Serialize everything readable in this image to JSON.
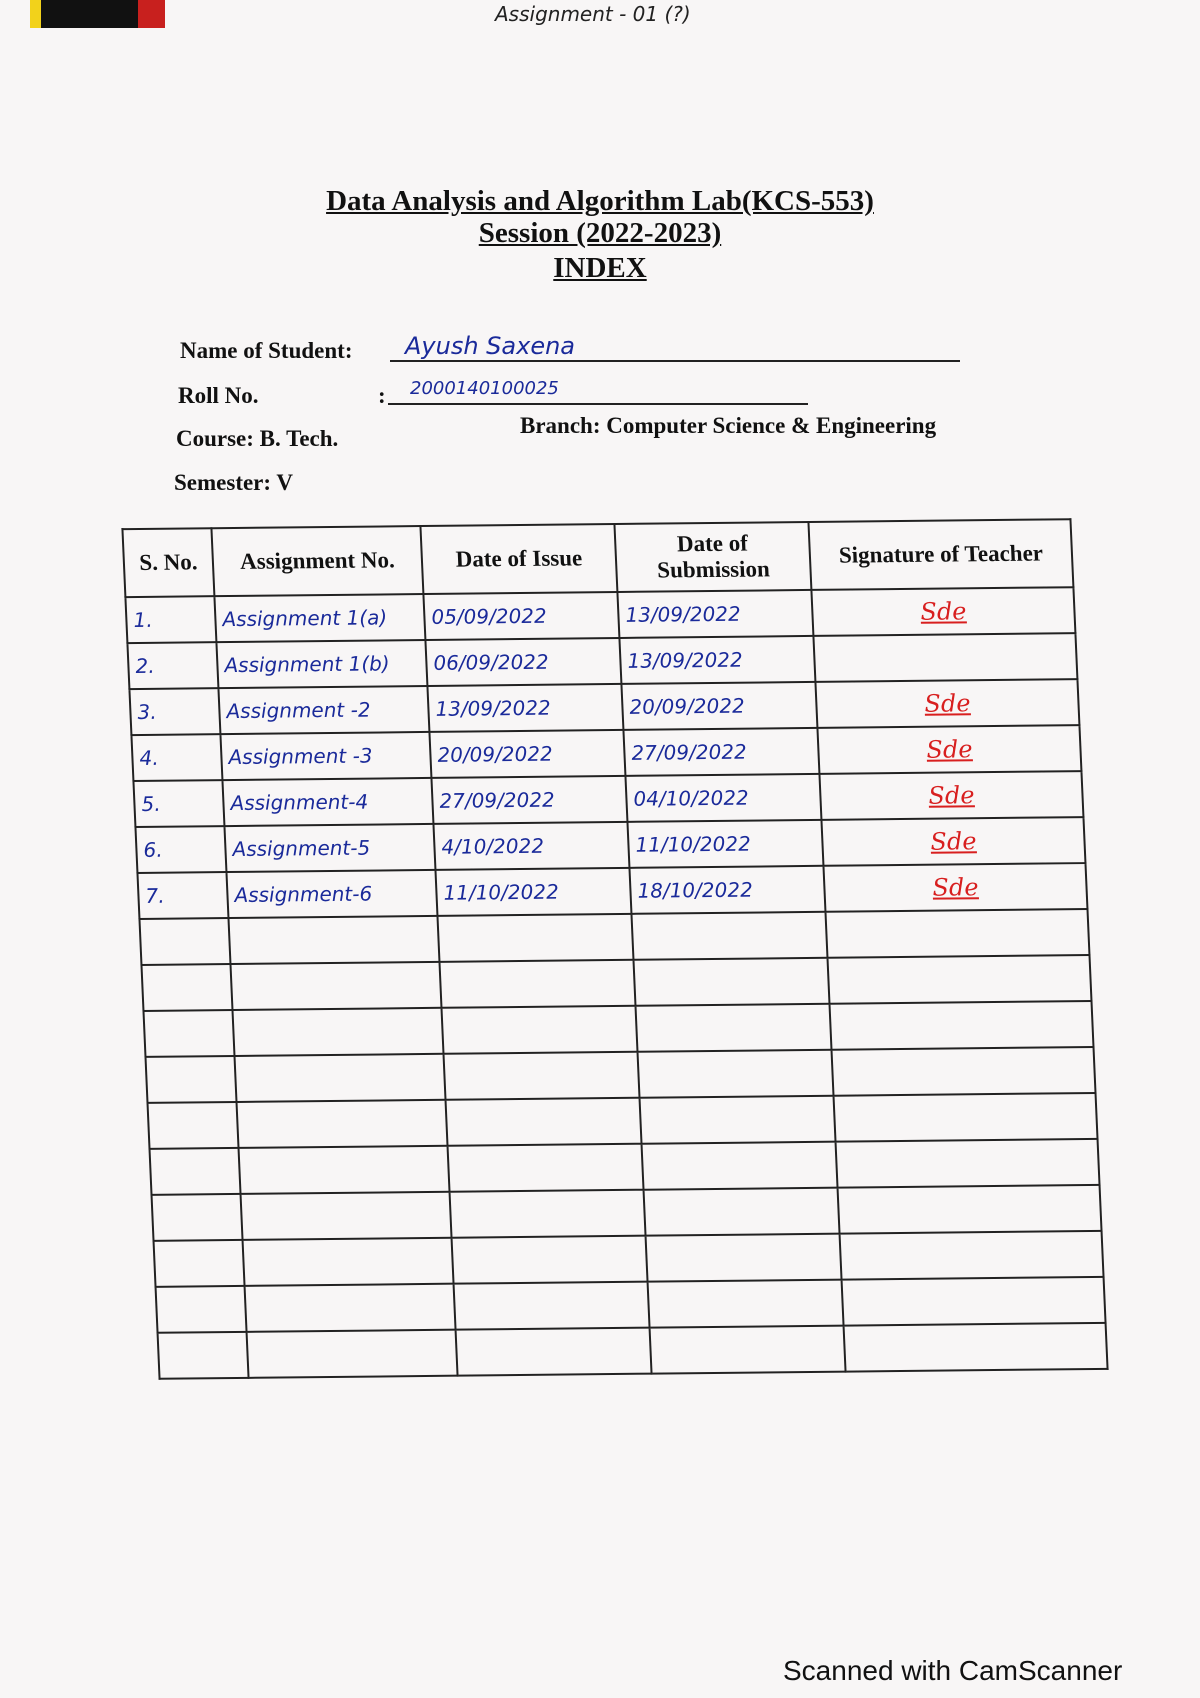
{
  "header": {
    "top_note": "Assignment - 01 (?)",
    "title": "Data Analysis and Algorithm Lab(KCS-553)",
    "session": "Session (2022-2023)",
    "index": "INDEX"
  },
  "student": {
    "name_label": "Name of Student:",
    "name": "Ayush Saxena",
    "roll_label": "Roll No.",
    "roll_colon": ":",
    "roll": "2000140100025",
    "course": "Course: B. Tech.",
    "branch": "Branch: Computer Science & Engineering",
    "semester": "Semester: V"
  },
  "table": {
    "headers": [
      "S. No.",
      "Assignment No.",
      "Date of Issue",
      "Date of Submission",
      "Signature of Teacher"
    ],
    "rows": [
      {
        "sno": "1.",
        "assignment": "Assignment 1(a)",
        "issue": "05/09/2022",
        "submission": "13/09/2022",
        "signature": "Sde"
      },
      {
        "sno": "2.",
        "assignment": "Assignment 1(b)",
        "issue": "06/09/2022",
        "submission": "13/09/2022",
        "signature": ""
      },
      {
        "sno": "3.",
        "assignment": "Assignment -2",
        "issue": "13/09/2022",
        "submission": "20/09/2022",
        "signature": "Sde"
      },
      {
        "sno": "4.",
        "assignment": "Assignment -3",
        "issue": "20/09/2022",
        "submission": "27/09/2022",
        "signature": "Sde"
      },
      {
        "sno": "5.",
        "assignment": "Assignment-4",
        "issue": "27/09/2022",
        "submission": "04/10/2022",
        "signature": "Sde"
      },
      {
        "sno": "6.",
        "assignment": "Assignment-5",
        "issue": "4/10/2022",
        "submission": "11/10/2022",
        "signature": "Sde"
      },
      {
        "sno": "7.",
        "assignment": "Assignment-6",
        "issue": "11/10/2022",
        "submission": "18/10/2022",
        "signature": "Sde"
      }
    ],
    "blank_rows": 10
  },
  "footer": {
    "watermark": "Scanned with CamScanner"
  }
}
